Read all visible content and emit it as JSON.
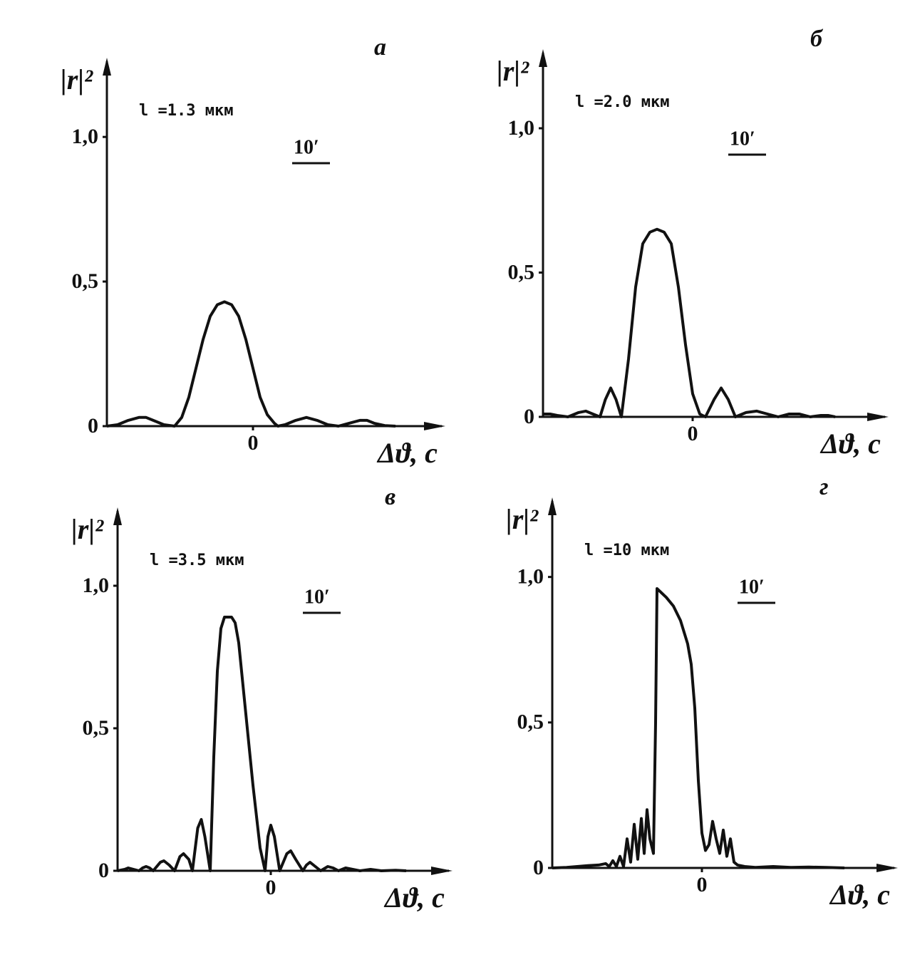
{
  "chart_data": [
    {
      "type": "line",
      "panel_label": "а",
      "annotation": "l =1.3 мкм",
      "scale_label": "10′",
      "ylabel": "|r|²",
      "xlabel": "Δϑ, с",
      "xlim": [
        -41,
        53
      ],
      "ylim": [
        0,
        1.2
      ],
      "xticks": [
        0
      ],
      "yticks": [
        0,
        {
          "value": 0.5,
          "label": "0,5"
        },
        {
          "value": 1.0,
          "label": "1,0"
        }
      ],
      "color": "#111111",
      "x": [
        -41,
        -38,
        -35,
        -32,
        -30,
        -28,
        -25,
        -22,
        -20,
        -18,
        -16,
        -14,
        -12,
        -10,
        -8,
        -6,
        -4,
        -2,
        0,
        2,
        4,
        6,
        7,
        9,
        12,
        15,
        18,
        21,
        24,
        27,
        30,
        32,
        34,
        37,
        40
      ],
      "values": [
        0,
        0.005,
        0.02,
        0.03,
        0.03,
        0.02,
        0.005,
        0,
        0.03,
        0.1,
        0.2,
        0.3,
        0.38,
        0.42,
        0.43,
        0.42,
        0.38,
        0.3,
        0.2,
        0.1,
        0.04,
        0.01,
        0,
        0.005,
        0.02,
        0.03,
        0.02,
        0.005,
        0,
        0.01,
        0.02,
        0.02,
        0.01,
        0.002,
        0
      ]
    },
    {
      "type": "line",
      "panel_label": "б",
      "annotation": "l =2.0 мкм",
      "scale_label": "10′",
      "ylabel": "|r|²",
      "xlabel": "Δϑ, с",
      "xlim": [
        -42,
        54
      ],
      "ylim": [
        0,
        1.2
      ],
      "xticks": [
        0
      ],
      "yticks": [
        0,
        {
          "value": 0.5,
          "label": "0,5"
        },
        {
          "value": 1.0,
          "label": "1,0"
        }
      ],
      "color": "#111111",
      "x": [
        -42,
        -40,
        -38,
        -35,
        -32,
        -30,
        -28,
        -26,
        -24.5,
        -23,
        -21.5,
        -20,
        -18,
        -16,
        -14,
        -12,
        -10,
        -8,
        -6,
        -4,
        -2,
        0,
        2,
        3.6,
        6,
        8,
        10,
        12,
        15,
        18,
        21,
        24,
        27,
        30,
        33,
        36,
        38,
        40
      ],
      "values": [
        0.01,
        0.01,
        0.005,
        0,
        0.015,
        0.02,
        0.01,
        0,
        0.06,
        0.1,
        0.06,
        0,
        0.2,
        0.45,
        0.6,
        0.64,
        0.65,
        0.64,
        0.6,
        0.45,
        0.25,
        0.08,
        0.01,
        0,
        0.06,
        0.1,
        0.06,
        0,
        0.015,
        0.02,
        0.01,
        0,
        0.01,
        0.01,
        0,
        0.005,
        0.005,
        0
      ]
    },
    {
      "type": "line",
      "panel_label": "в",
      "annotation": "l =3.5 мкм",
      "scale_label": "10′",
      "ylabel": "|r|²",
      "xlabel": "Δϑ, с",
      "xlim": [
        -43,
        50
      ],
      "ylim": [
        0,
        1.2
      ],
      "xticks": [
        0
      ],
      "yticks": [
        0,
        {
          "value": 0.5,
          "label": "0,5"
        },
        {
          "value": 1.0,
          "label": "1,0"
        }
      ],
      "color": "#111111",
      "x": [
        -43,
        -41,
        -40,
        -38.5,
        -37,
        -36,
        -35,
        -34,
        -33,
        -31,
        -30,
        -28.5,
        -27,
        -25.5,
        -24.5,
        -23,
        -22,
        -20.5,
        -19.5,
        -18.5,
        -17,
        -16,
        -15,
        -14,
        -13,
        -11,
        -10,
        -9,
        -7,
        -5,
        -3,
        -1.6,
        -0.8,
        0,
        1,
        2.5,
        4.5,
        5.6,
        7,
        9,
        10,
        11,
        12.5,
        14,
        16,
        17.5,
        19,
        21,
        23,
        25,
        28,
        31,
        35,
        38
      ],
      "values": [
        0,
        0.005,
        0.01,
        0.005,
        0,
        0.01,
        0.015,
        0.01,
        0,
        0.03,
        0.035,
        0.02,
        0,
        0.05,
        0.06,
        0.04,
        0,
        0.15,
        0.18,
        0.12,
        0,
        0.4,
        0.7,
        0.85,
        0.89,
        0.89,
        0.87,
        0.8,
        0.55,
        0.3,
        0.08,
        0,
        0.12,
        0.16,
        0.12,
        0,
        0.06,
        0.07,
        0.04,
        0,
        0.02,
        0.03,
        0.015,
        0,
        0.015,
        0.01,
        0,
        0.01,
        0.005,
        0,
        0.005,
        0,
        0.002,
        0
      ]
    },
    {
      "type": "line",
      "panel_label": "г",
      "annotation": "l =10 мкм",
      "scale_label": "10′",
      "ylabel": "|r|²",
      "xlabel": "Δϑ, с",
      "xlim": [
        -42,
        54
      ],
      "ylim": [
        0,
        1.2
      ],
      "xticks": [
        0
      ],
      "yticks": [
        0,
        {
          "value": 0.5,
          "label": "0,5"
        },
        {
          "value": 1.0,
          "label": "1,0"
        }
      ],
      "color": "#111111",
      "x": [
        -42,
        -38,
        -35,
        -32,
        -29,
        -27,
        -26,
        -25,
        -24,
        -23,
        -22,
        -21,
        -20,
        -19,
        -18,
        -17,
        -16.2,
        -15.4,
        -14.6,
        -13.6,
        -13,
        -12.6,
        -10,
        -8,
        -6,
        -4,
        -3,
        -2,
        -1,
        0,
        1,
        2,
        3,
        4,
        5,
        6,
        7,
        8,
        9,
        10,
        12,
        15,
        20,
        25,
        30,
        35,
        40
      ],
      "values": [
        0,
        0.002,
        0.005,
        0.008,
        0.01,
        0.015,
        0.005,
        0.025,
        0.005,
        0.04,
        0.005,
        0.1,
        0.02,
        0.15,
        0.03,
        0.17,
        0.05,
        0.2,
        0.1,
        0.05,
        0.5,
        0.96,
        0.93,
        0.9,
        0.85,
        0.77,
        0.7,
        0.55,
        0.3,
        0.12,
        0.06,
        0.08,
        0.16,
        0.1,
        0.05,
        0.13,
        0.04,
        0.1,
        0.02,
        0.01,
        0.005,
        0.002,
        0.005,
        0.002,
        0.003,
        0.002,
        0
      ]
    }
  ]
}
